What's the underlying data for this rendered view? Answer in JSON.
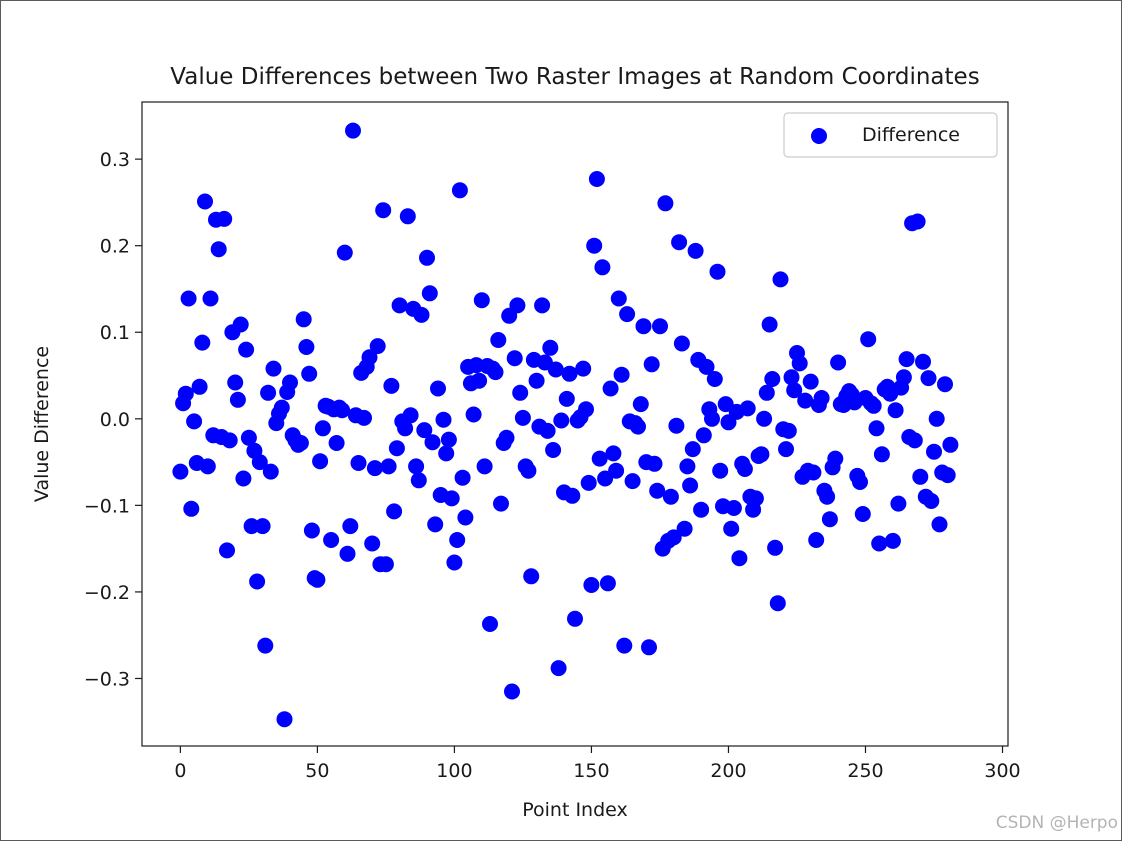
{
  "watermark": "CSDN @Herpo",
  "chart_data": {
    "type": "scatter",
    "title": "Value Differences between Two Raster Images at Random Coordinates",
    "xlabel": "Point Index",
    "ylabel": "Value Difference",
    "xlim": [
      -14,
      302
    ],
    "ylim": [
      -0.378,
      0.366
    ],
    "xticks": [
      0,
      50,
      100,
      150,
      200,
      250,
      300
    ],
    "xtick_labels": [
      "0",
      "50",
      "100",
      "150",
      "200",
      "250",
      "300"
    ],
    "yticks": [
      -0.3,
      -0.2,
      -0.1,
      0.0,
      0.1,
      0.2,
      0.3
    ],
    "ytick_labels": [
      "−0.3",
      "−0.2",
      "−0.1",
      "0.0",
      "0.1",
      "0.2",
      "0.3"
    ],
    "grid": false,
    "legend": {
      "position": "top-right",
      "entries": [
        "Difference"
      ]
    },
    "series": [
      {
        "name": "Difference",
        "color": "#0000ff",
        "points": [
          [
            0,
            -0.061
          ],
          [
            1,
            0.018
          ],
          [
            2,
            0.029
          ],
          [
            3,
            0.139
          ],
          [
            4,
            -0.104
          ],
          [
            5,
            -0.003
          ],
          [
            6,
            -0.051
          ],
          [
            7,
            0.037
          ],
          [
            8,
            0.088
          ],
          [
            9,
            0.251
          ],
          [
            10,
            -0.055
          ],
          [
            11,
            0.139
          ],
          [
            12,
            -0.019
          ],
          [
            13,
            0.23
          ],
          [
            14,
            0.196
          ],
          [
            15,
            -0.021
          ],
          [
            16,
            0.231
          ],
          [
            17,
            -0.152
          ],
          [
            18,
            -0.025
          ],
          [
            19,
            0.1
          ],
          [
            20,
            0.042
          ],
          [
            21,
            0.022
          ],
          [
            22,
            0.109
          ],
          [
            23,
            -0.069
          ],
          [
            24,
            0.08
          ],
          [
            25,
            -0.022
          ],
          [
            26,
            -0.124
          ],
          [
            27,
            -0.037
          ],
          [
            28,
            -0.188
          ],
          [
            29,
            -0.05
          ],
          [
            30,
            -0.124
          ],
          [
            31,
            -0.262
          ],
          [
            32,
            0.03
          ],
          [
            33,
            -0.061
          ],
          [
            34,
            0.058
          ],
          [
            35,
            -0.005
          ],
          [
            36,
            0.006
          ],
          [
            37,
            0.013
          ],
          [
            38,
            -0.347
          ],
          [
            39,
            0.031
          ],
          [
            40,
            0.042
          ],
          [
            41,
            -0.019
          ],
          [
            42,
            -0.025
          ],
          [
            43,
            -0.03
          ],
          [
            44,
            -0.028
          ],
          [
            45,
            0.115
          ],
          [
            46,
            0.083
          ],
          [
            47,
            0.052
          ],
          [
            48,
            -0.129
          ],
          [
            49,
            -0.184
          ],
          [
            50,
            -0.186
          ],
          [
            51,
            -0.049
          ],
          [
            52,
            -0.011
          ],
          [
            53,
            0.015
          ],
          [
            54,
            0.014
          ],
          [
            55,
            -0.14
          ],
          [
            56,
            0.011
          ],
          [
            57,
            -0.028
          ],
          [
            58,
            0.013
          ],
          [
            59,
            0.01
          ],
          [
            60,
            0.192
          ],
          [
            61,
            -0.156
          ],
          [
            62,
            -0.124
          ],
          [
            63,
            0.333
          ],
          [
            64,
            0.004
          ],
          [
            65,
            -0.051
          ],
          [
            66,
            0.053
          ],
          [
            67,
            0.001
          ],
          [
            68,
            0.06
          ],
          [
            69,
            0.071
          ],
          [
            70,
            -0.144
          ],
          [
            71,
            -0.057
          ],
          [
            72,
            0.084
          ],
          [
            73,
            -0.168
          ],
          [
            74,
            0.241
          ],
          [
            75,
            -0.168
          ],
          [
            76,
            -0.055
          ],
          [
            77,
            0.038
          ],
          [
            78,
            -0.107
          ],
          [
            79,
            -0.034
          ],
          [
            80,
            0.131
          ],
          [
            81,
            -0.003
          ],
          [
            82,
            -0.011
          ],
          [
            83,
            0.234
          ],
          [
            84,
            0.004
          ],
          [
            85,
            0.127
          ],
          [
            86,
            -0.055
          ],
          [
            87,
            -0.071
          ],
          [
            88,
            0.12
          ],
          [
            89,
            -0.013
          ],
          [
            90,
            0.186
          ],
          [
            91,
            0.145
          ],
          [
            92,
            -0.027
          ],
          [
            93,
            -0.122
          ],
          [
            94,
            0.035
          ],
          [
            95,
            -0.088
          ],
          [
            96,
            -0.001
          ],
          [
            97,
            -0.04
          ],
          [
            98,
            -0.024
          ],
          [
            99,
            -0.092
          ],
          [
            100,
            -0.166
          ],
          [
            101,
            -0.14
          ],
          [
            102,
            0.264
          ],
          [
            103,
            -0.068
          ],
          [
            104,
            -0.114
          ],
          [
            105,
            0.06
          ],
          [
            106,
            0.041
          ],
          [
            107,
            0.005
          ],
          [
            108,
            0.062
          ],
          [
            109,
            0.044
          ],
          [
            110,
            0.137
          ],
          [
            111,
            -0.055
          ],
          [
            112,
            0.061
          ],
          [
            113,
            -0.237
          ],
          [
            114,
            0.058
          ],
          [
            115,
            0.054
          ],
          [
            116,
            0.091
          ],
          [
            117,
            -0.098
          ],
          [
            118,
            -0.028
          ],
          [
            119,
            -0.022
          ],
          [
            120,
            0.119
          ],
          [
            121,
            -0.315
          ],
          [
            122,
            0.07
          ],
          [
            123,
            0.131
          ],
          [
            124,
            0.03
          ],
          [
            125,
            0.001
          ],
          [
            126,
            -0.055
          ],
          [
            127,
            -0.06
          ],
          [
            128,
            -0.182
          ],
          [
            129,
            0.068
          ],
          [
            130,
            0.044
          ],
          [
            131,
            -0.009
          ],
          [
            132,
            0.131
          ],
          [
            133,
            0.065
          ],
          [
            134,
            -0.014
          ],
          [
            135,
            0.082
          ],
          [
            136,
            -0.036
          ],
          [
            137,
            0.057
          ],
          [
            138,
            -0.288
          ],
          [
            139,
            -0.002
          ],
          [
            140,
            -0.085
          ],
          [
            141,
            0.023
          ],
          [
            142,
            0.052
          ],
          [
            143,
            -0.089
          ],
          [
            144,
            -0.231
          ],
          [
            145,
            -0.002
          ],
          [
            146,
            0.002
          ],
          [
            147,
            0.058
          ],
          [
            148,
            0.011
          ],
          [
            149,
            -0.074
          ],
          [
            150,
            -0.192
          ],
          [
            151,
            0.2
          ],
          [
            152,
            0.277
          ],
          [
            153,
            -0.046
          ],
          [
            154,
            0.175
          ],
          [
            155,
            -0.069
          ],
          [
            156,
            -0.19
          ],
          [
            157,
            0.035
          ],
          [
            158,
            -0.04
          ],
          [
            159,
            -0.06
          ],
          [
            160,
            0.139
          ],
          [
            161,
            0.051
          ],
          [
            162,
            -0.262
          ],
          [
            163,
            0.121
          ],
          [
            164,
            -0.003
          ],
          [
            165,
            -0.072
          ],
          [
            166,
            -0.005
          ],
          [
            167,
            -0.009
          ],
          [
            168,
            0.017
          ],
          [
            169,
            0.107
          ],
          [
            170,
            -0.05
          ],
          [
            171,
            -0.264
          ],
          [
            172,
            0.063
          ],
          [
            173,
            -0.052
          ],
          [
            174,
            -0.083
          ],
          [
            175,
            0.107
          ],
          [
            176,
            -0.15
          ],
          [
            177,
            0.249
          ],
          [
            178,
            -0.141
          ],
          [
            179,
            -0.09
          ],
          [
            180,
            -0.137
          ],
          [
            181,
            -0.008
          ],
          [
            182,
            0.204
          ],
          [
            183,
            0.087
          ],
          [
            184,
            -0.127
          ],
          [
            185,
            -0.055
          ],
          [
            186,
            -0.077
          ],
          [
            187,
            -0.035
          ],
          [
            188,
            0.194
          ],
          [
            189,
            0.068
          ],
          [
            190,
            -0.105
          ],
          [
            191,
            -0.019
          ],
          [
            192,
            0.06
          ],
          [
            193,
            0.011
          ],
          [
            194,
            0.0
          ],
          [
            195,
            0.046
          ],
          [
            196,
            0.17
          ],
          [
            197,
            -0.06
          ],
          [
            198,
            -0.101
          ],
          [
            199,
            0.017
          ],
          [
            200,
            -0.004
          ],
          [
            201,
            -0.127
          ],
          [
            202,
            -0.103
          ],
          [
            203,
            0.008
          ],
          [
            204,
            -0.161
          ],
          [
            205,
            -0.052
          ],
          [
            206,
            -0.058
          ],
          [
            207,
            0.012
          ],
          [
            208,
            -0.09
          ],
          [
            209,
            -0.105
          ],
          [
            210,
            -0.092
          ],
          [
            211,
            -0.043
          ],
          [
            212,
            -0.041
          ],
          [
            213,
            0.0
          ],
          [
            214,
            0.03
          ],
          [
            215,
            0.109
          ],
          [
            216,
            0.046
          ],
          [
            217,
            -0.149
          ],
          [
            218,
            -0.213
          ],
          [
            219,
            0.161
          ],
          [
            220,
            -0.012
          ],
          [
            221,
            -0.035
          ],
          [
            222,
            -0.014
          ],
          [
            223,
            0.048
          ],
          [
            224,
            0.033
          ],
          [
            225,
            0.076
          ],
          [
            226,
            0.064
          ],
          [
            227,
            -0.067
          ],
          [
            228,
            0.021
          ],
          [
            229,
            -0.06
          ],
          [
            230,
            0.043
          ],
          [
            231,
            -0.062
          ],
          [
            232,
            -0.14
          ],
          [
            233,
            0.016
          ],
          [
            234,
            0.024
          ],
          [
            235,
            -0.083
          ],
          [
            236,
            -0.09
          ],
          [
            237,
            -0.116
          ],
          [
            238,
            -0.056
          ],
          [
            239,
            -0.046
          ],
          [
            240,
            0.065
          ],
          [
            241,
            0.017
          ],
          [
            242,
            0.016
          ],
          [
            243,
            0.026
          ],
          [
            244,
            0.032
          ],
          [
            245,
            0.028
          ],
          [
            246,
            0.019
          ],
          [
            247,
            -0.066
          ],
          [
            248,
            -0.073
          ],
          [
            249,
            -0.11
          ],
          [
            250,
            0.024
          ],
          [
            251,
            0.092
          ],
          [
            252,
            0.018
          ],
          [
            253,
            0.015
          ],
          [
            254,
            -0.011
          ],
          [
            255,
            -0.144
          ],
          [
            256,
            -0.041
          ],
          [
            257,
            0.034
          ],
          [
            258,
            0.037
          ],
          [
            259,
            0.029
          ],
          [
            260,
            -0.141
          ],
          [
            261,
            0.01
          ],
          [
            262,
            -0.098
          ],
          [
            263,
            0.036
          ],
          [
            264,
            0.048
          ],
          [
            265,
            0.069
          ],
          [
            266,
            -0.021
          ],
          [
            267,
            0.226
          ],
          [
            268,
            -0.025
          ],
          [
            269,
            0.228
          ],
          [
            270,
            -0.067
          ],
          [
            271,
            0.066
          ],
          [
            272,
            -0.09
          ],
          [
            273,
            0.047
          ],
          [
            274,
            -0.095
          ],
          [
            275,
            -0.038
          ],
          [
            276,
            0.0
          ],
          [
            277,
            -0.122
          ],
          [
            278,
            -0.062
          ],
          [
            279,
            0.04
          ],
          [
            280,
            -0.065
          ],
          [
            281,
            -0.03
          ]
        ]
      }
    ]
  }
}
